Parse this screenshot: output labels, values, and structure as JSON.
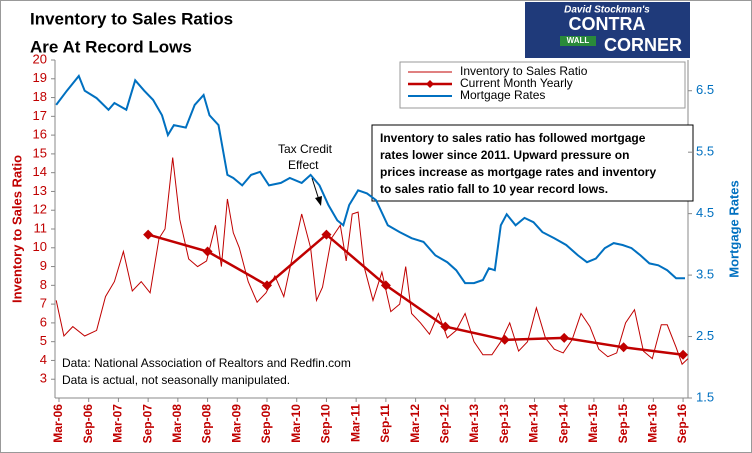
{
  "chart_data": {
    "type": "line",
    "title": [
      "Inventory to Sales Ratios",
      "Are At Record Lows"
    ],
    "y_label": "Inventory to Sales Ratio",
    "y2_label": "Mortgage Rates",
    "xlim": [
      2006.1,
      2016.75
    ],
    "xticks": [
      {
        "value": 2006.167,
        "label": "Mar-06"
      },
      {
        "value": 2006.667,
        "label": "Sep-06"
      },
      {
        "value": 2007.167,
        "label": "Mar-07"
      },
      {
        "value": 2007.667,
        "label": "Sep-07"
      },
      {
        "value": 2008.167,
        "label": "Mar-08"
      },
      {
        "value": 2008.667,
        "label": "Sep-08"
      },
      {
        "value": 2009.167,
        "label": "Mar-09"
      },
      {
        "value": 2009.667,
        "label": "Sep-09"
      },
      {
        "value": 2010.167,
        "label": "Mar-10"
      },
      {
        "value": 2010.667,
        "label": "Sep-10"
      },
      {
        "value": 2011.167,
        "label": "Mar-11"
      },
      {
        "value": 2011.667,
        "label": "Sep-11"
      },
      {
        "value": 2012.167,
        "label": "Mar-12"
      },
      {
        "value": 2012.667,
        "label": "Sep-12"
      },
      {
        "value": 2013.167,
        "label": "Mar-13"
      },
      {
        "value": 2013.667,
        "label": "Sep-13"
      },
      {
        "value": 2014.167,
        "label": "Mar-14"
      },
      {
        "value": 2014.667,
        "label": "Sep-14"
      },
      {
        "value": 2015.167,
        "label": "Mar-15"
      },
      {
        "value": 2015.667,
        "label": "Sep-15"
      },
      {
        "value": 2016.167,
        "label": "Mar-16"
      },
      {
        "value": 2016.667,
        "label": "Sep-16"
      }
    ],
    "ylim": [
      2,
      20
    ],
    "yticks": [
      3,
      4,
      5,
      6,
      7,
      8,
      9,
      10,
      11,
      12,
      13,
      14,
      15,
      16,
      17,
      18,
      19,
      20
    ],
    "y2lim": [
      1.5,
      7.0
    ],
    "y2ticks": [
      1.5,
      2.5,
      3.5,
      4.5,
      5.5,
      6.5
    ],
    "grid": false,
    "series": [
      {
        "name": "Inventory to Sales Ratio",
        "color": "#c00000",
        "axis": "y",
        "width": 1,
        "x": [
          2006.12,
          2006.25,
          2006.4,
          2006.6,
          2006.8,
          2006.95,
          2007.1,
          2007.25,
          2007.4,
          2007.55,
          2007.7,
          2007.85,
          2007.95,
          2008.08,
          2008.2,
          2008.35,
          2008.5,
          2008.65,
          2008.8,
          2008.9,
          2009.0,
          2009.1,
          2009.2,
          2009.35,
          2009.5,
          2009.65,
          2009.8,
          2009.95,
          2010.1,
          2010.25,
          2010.4,
          2010.5,
          2010.6,
          2010.75,
          2010.9,
          2011.0,
          2011.1,
          2011.2,
          2011.3,
          2011.45,
          2011.6,
          2011.75,
          2011.9,
          2012.0,
          2012.1,
          2012.25,
          2012.4,
          2012.55,
          2012.7,
          2012.85,
          2013.0,
          2013.15,
          2013.3,
          2013.45,
          2013.6,
          2013.75,
          2013.9,
          2014.05,
          2014.2,
          2014.35,
          2014.5,
          2014.65,
          2014.8,
          2014.95,
          2015.1,
          2015.25,
          2015.4,
          2015.55,
          2015.7,
          2015.85,
          2016.0,
          2016.15,
          2016.3,
          2016.4,
          2016.55,
          2016.65,
          2016.75
        ],
        "values": [
          7.2,
          5.3,
          5.8,
          5.3,
          5.6,
          7.4,
          8.2,
          9.8,
          7.7,
          8.2,
          7.6,
          10.5,
          11.0,
          14.8,
          11.5,
          9.4,
          9.0,
          9.3,
          11.2,
          9.0,
          12.6,
          10.8,
          10.0,
          8.2,
          7.1,
          7.6,
          8.5,
          7.4,
          9.6,
          11.8,
          10.0,
          7.2,
          7.9,
          10.5,
          11.2,
          9.3,
          11.8,
          11.9,
          9.0,
          7.2,
          8.7,
          6.6,
          7.0,
          9.0,
          6.5,
          6.0,
          5.4,
          6.5,
          5.2,
          5.6,
          6.5,
          5.0,
          4.3,
          4.3,
          5.0,
          6.0,
          4.5,
          5.0,
          6.8,
          5.2,
          4.6,
          4.4,
          5.1,
          6.5,
          5.8,
          4.6,
          4.2,
          4.4,
          6.0,
          6.7,
          4.5,
          4.1,
          5.9,
          5.9,
          4.7,
          3.8,
          4.1
        ]
      },
      {
        "name": "Current Month Yearly",
        "color": "#c00000",
        "axis": "y",
        "width": 2.5,
        "marker": "diamond",
        "x": [
          2007.667,
          2008.667,
          2009.667,
          2010.667,
          2011.667,
          2012.667,
          2013.667,
          2014.667,
          2015.667,
          2016.667
        ],
        "values": [
          10.7,
          9.8,
          8.0,
          10.7,
          8.0,
          5.8,
          5.1,
          5.2,
          4.7,
          4.3
        ]
      },
      {
        "name": "Mortgage Rates",
        "color": "#0070c0",
        "axis": "y2",
        "width": 2,
        "x": [
          2006.12,
          2006.3,
          2006.5,
          2006.6,
          2006.8,
          2007.0,
          2007.1,
          2007.3,
          2007.45,
          2007.6,
          2007.75,
          2007.9,
          2008.0,
          2008.1,
          2008.3,
          2008.45,
          2008.6,
          2008.7,
          2008.85,
          2009.0,
          2009.1,
          2009.25,
          2009.4,
          2009.55,
          2009.7,
          2009.9,
          2010.05,
          2010.25,
          2010.4,
          2010.55,
          2010.7,
          2010.85,
          2010.95,
          2011.05,
          2011.2,
          2011.35,
          2011.5,
          2011.7,
          2011.9,
          2012.1,
          2012.3,
          2012.5,
          2012.7,
          2012.85,
          2013.0,
          2013.15,
          2013.3,
          2013.4,
          2013.5,
          2013.6,
          2013.7,
          2013.85,
          2014.0,
          2014.15,
          2014.3,
          2014.5,
          2014.7,
          2014.9,
          2015.05,
          2015.2,
          2015.35,
          2015.5,
          2015.65,
          2015.8,
          2015.95,
          2016.1,
          2016.25,
          2016.4,
          2016.55,
          2016.7
        ],
        "values": [
          6.27,
          6.5,
          6.74,
          6.5,
          6.38,
          6.19,
          6.3,
          6.19,
          6.67,
          6.5,
          6.35,
          6.1,
          5.78,
          5.94,
          5.9,
          6.27,
          6.43,
          6.1,
          5.94,
          5.13,
          5.08,
          4.96,
          5.13,
          5.18,
          4.96,
          5.0,
          5.08,
          5.0,
          5.13,
          4.96,
          4.64,
          4.39,
          4.31,
          4.64,
          4.88,
          4.83,
          4.72,
          4.31,
          4.2,
          4.1,
          4.04,
          3.82,
          3.71,
          3.58,
          3.37,
          3.37,
          3.42,
          3.61,
          3.58,
          4.31,
          4.49,
          4.31,
          4.43,
          4.36,
          4.2,
          4.1,
          3.99,
          3.82,
          3.71,
          3.77,
          3.94,
          4.02,
          3.99,
          3.94,
          3.82,
          3.69,
          3.66,
          3.58,
          3.45,
          3.45
        ]
      }
    ],
    "annotations": {
      "box": [
        "Inventory to sales ratio has followed mortgage",
        "rates lower since 2011. Upward pressure on",
        "prices increase as mortgage rates and inventory",
        "to sales ratio fall to 10 year record lows."
      ],
      "arrow": [
        "Tax Credit",
        "Effect"
      ],
      "source": [
        "Data: National Association of Realtors and Redfin.com",
        "Data is actual, not seasonally manipulated."
      ]
    },
    "logo": [
      "David Stockman's",
      "CONTRA",
      "WALL",
      "CORNER"
    ]
  }
}
